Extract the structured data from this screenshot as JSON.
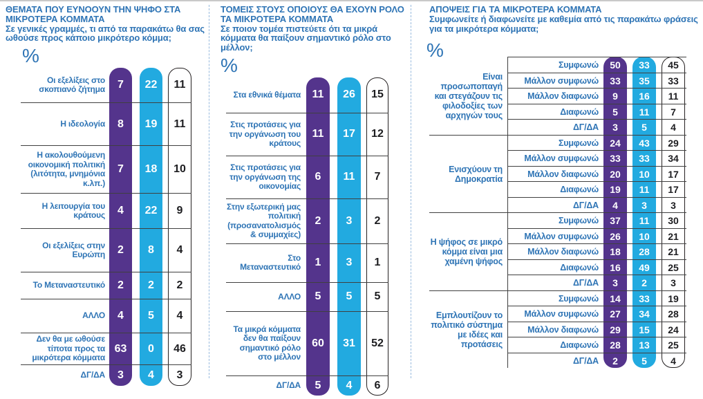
{
  "colors": {
    "purple_column": "#54348c",
    "cyan_column": "#22aae0",
    "outlined_column_border": "#231f20",
    "heading_blue": "#2e74b5",
    "grid_line": "#3f3f3f",
    "panel_separator_blue": "#97bade"
  },
  "answer_scale": [
    "Συμφωνώ",
    "Μάλλον συμφωνώ",
    "Μάλλον διαφωνώ",
    "Διαφωνώ",
    "ΔΓ/ΔΑ"
  ],
  "chart_data": [
    {
      "type": "table",
      "title": "ΘΕΜΑΤΑ ΠΟΥ ΕΥΝΟΟΥΝ ΤΗΝ ΨΗΦΟ ΣΤΑ ΜΙΚΡΟΤΕΡΑ ΚΟΜΜΑΤΑ",
      "subtitle": "Σε γενικές γραμμές, τι από τα παρακάτω θα σας ωθούσε προς κάποιο μικρότερο κόμμα;",
      "unit": "%",
      "column_styles": [
        "purple",
        "cyan",
        "white-outlined"
      ],
      "rows": [
        {
          "label": "Οι εξελίξεις στο σκοπιανό ζήτημα",
          "values": [
            7,
            22,
            11
          ]
        },
        {
          "label": "Η ιδεολογία",
          "values": [
            8,
            19,
            11
          ]
        },
        {
          "label": "Η ακολουθούμενη οικονομική πολιτική (λιτότητα, μνημόνια κ.λπ.)",
          "values": [
            7,
            18,
            10
          ]
        },
        {
          "label": "Η λειτουργία του κράτους",
          "values": [
            4,
            22,
            9
          ]
        },
        {
          "label": "Οι εξελίξεις στην Ευρώπη",
          "values": [
            2,
            8,
            4
          ]
        },
        {
          "label": "Το Μεταναστευτικό",
          "values": [
            2,
            2,
            2
          ]
        },
        {
          "label": "ΑΛΛΟ",
          "values": [
            4,
            5,
            4
          ]
        },
        {
          "label": "Δεν θα με ωθούσε τίποτα προς τα μικρότερα κόμματα",
          "values": [
            63,
            0,
            46
          ]
        },
        {
          "label": "ΔΓ/ΔΑ",
          "values": [
            3,
            4,
            3
          ]
        }
      ]
    },
    {
      "type": "table",
      "title": "ΤΟΜΕΙΣ ΣΤΟΥΣ ΟΠΟΙΟΥΣ ΘΑ ΕΧΟΥΝ ΡΟΛΟ ΤΑ ΜΙΚΡΟΤΕΡΑ ΚΟΜΜΑΤΑ",
      "subtitle": "Σε ποιον τομέα πιστεύετε ότι τα μικρά κόμματα θα παίξουν σημαντικό ρόλο στο μέλλον;",
      "unit": "%",
      "column_styles": [
        "purple",
        "cyan",
        "white-outlined"
      ],
      "rows": [
        {
          "label": "Στα εθνικά θέματα",
          "values": [
            11,
            26,
            15
          ]
        },
        {
          "label": "Στις προτάσεις για την οργάνωση του κράτους",
          "values": [
            11,
            17,
            12
          ]
        },
        {
          "label": "Στις προτάσεις για την οργάνωση της οικονομίας",
          "values": [
            6,
            11,
            7
          ]
        },
        {
          "label": "Στην εξωτερική μας πολιτική (προσανατολισμός & συμμαχίες)",
          "values": [
            2,
            3,
            2
          ]
        },
        {
          "label": "Στο Μεταναστευτικό",
          "values": [
            1,
            3,
            1
          ]
        },
        {
          "label": "ΑΛΛΟ",
          "values": [
            5,
            5,
            5
          ]
        },
        {
          "label": "Τα μικρά κόμματα δεν θα παίξουν σημαντικό ρόλο στο μέλλον",
          "values": [
            60,
            31,
            52
          ]
        },
        {
          "label": "ΔΓ/ΔΑ",
          "values": [
            5,
            4,
            6
          ]
        }
      ]
    },
    {
      "type": "table",
      "title": "ΑΠΟΨΕΙΣ ΓΙΑ ΤΑ ΜΙΚΡΟΤΕΡΑ ΚΟΜΜΑΤΑ",
      "subtitle": "Συμφωνείτε ή διαφωνείτε με καθεμία από τις παρακάτω φράσεις για τα μικρότερα κόμματα;",
      "unit": "%",
      "column_styles": [
        "purple",
        "cyan",
        "white-outlined"
      ],
      "groups": [
        {
          "label": "Είναι προσωποπαγή και στεγάζουν τις φιλοδοξίες των αρχηγών τους",
          "rows": [
            {
              "label": "Συμφωνώ",
              "values": [
                50,
                33,
                45
              ]
            },
            {
              "label": "Μάλλον συμφωνώ",
              "values": [
                33,
                35,
                33
              ]
            },
            {
              "label": "Μάλλον διαφωνώ",
              "values": [
                9,
                16,
                11
              ]
            },
            {
              "label": "Διαφωνώ",
              "values": [
                5,
                11,
                7
              ]
            },
            {
              "label": "ΔΓ/ΔΑ",
              "values": [
                3,
                5,
                4
              ]
            }
          ]
        },
        {
          "label": "Ενισχύουν τη Δημοκρατία",
          "rows": [
            {
              "label": "Συμφωνώ",
              "values": [
                24,
                43,
                29
              ]
            },
            {
              "label": "Μάλλον συμφωνώ",
              "values": [
                33,
                33,
                34
              ]
            },
            {
              "label": "Μάλλον διαφωνώ",
              "values": [
                20,
                10,
                17
              ]
            },
            {
              "label": "Διαφωνώ",
              "values": [
                19,
                11,
                17
              ]
            },
            {
              "label": "ΔΓ/ΔΑ",
              "values": [
                4,
                3,
                3
              ]
            }
          ]
        },
        {
          "label": "Η ψήφος σε μικρό κόμμα είναι μια χαμένη ψήφος",
          "rows": [
            {
              "label": "Συμφωνώ",
              "values": [
                37,
                11,
                30
              ]
            },
            {
              "label": "Μάλλον συμφωνώ",
              "values": [
                26,
                10,
                21
              ]
            },
            {
              "label": "Μάλλον διαφωνώ",
              "values": [
                18,
                28,
                21
              ]
            },
            {
              "label": "Διαφωνώ",
              "values": [
                16,
                49,
                25
              ]
            },
            {
              "label": "ΔΓ/ΔΑ",
              "values": [
                3,
                2,
                3
              ]
            }
          ]
        },
        {
          "label": "Εμπλουτίζουν το πολιτικό σύστημα με ιδέες και προτάσεις",
          "rows": [
            {
              "label": "Συμφωνώ",
              "values": [
                14,
                33,
                19
              ]
            },
            {
              "label": "Μάλλον συμφωνώ",
              "values": [
                27,
                34,
                28
              ]
            },
            {
              "label": "Μάλλον διαφωνώ",
              "values": [
                29,
                15,
                24
              ]
            },
            {
              "label": "Διαφωνώ",
              "values": [
                28,
                13,
                25
              ]
            },
            {
              "label": "ΔΓ/ΔΑ",
              "values": [
                2,
                5,
                4
              ]
            }
          ]
        }
      ]
    }
  ]
}
